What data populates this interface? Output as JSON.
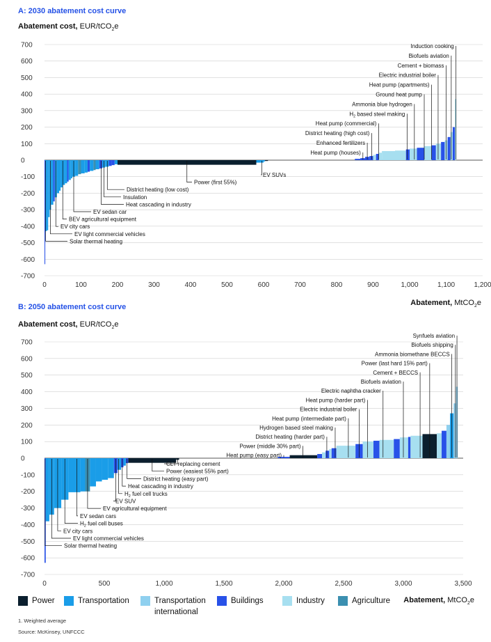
{
  "colors": {
    "Power": "#0b1f2e",
    "Transportation": "#1a9de8",
    "Transportation international": "#8fd0ef",
    "Buildings": "#2851e8",
    "Industry": "#a7dff0",
    "Agriculture": "#3b8fb0",
    "title": "#2451e6"
  },
  "sub": "2",
  "yaxis_title": {
    "bold": "Abatement cost,",
    "unit_pre": " EUR/tCO",
    "unit_post": "e"
  },
  "xaxis_title": {
    "bold": "Abatement,",
    "unit_pre": " MtCO",
    "unit_post": "e"
  },
  "legend": [
    {
      "label": "Power",
      "key": "Power"
    },
    {
      "label": "Transportation",
      "key": "Transportation"
    },
    {
      "label": "Transportation international",
      "key": "Transportation international"
    },
    {
      "label": "Buildings",
      "key": "Buildings"
    },
    {
      "label": "Industry",
      "key": "Industry"
    },
    {
      "label": "Agriculture",
      "key": "Agriculture"
    }
  ],
  "footnote": "1. Weighted average",
  "source": "Source: McKinsey, UNFCCC",
  "chart_data": [
    {
      "type": "bar",
      "title": "A: 2030 abatement cost curve",
      "ylabel": "Abatement cost, EUR/tCO2e",
      "xlabel": "Abatement, MtCO2e",
      "xlim": [
        0,
        1200
      ],
      "ylim": [
        -700,
        700
      ],
      "xticks": [
        0,
        100,
        200,
        300,
        400,
        500,
        600,
        700,
        800,
        900,
        1000,
        1100,
        1200
      ],
      "xtick_labels": [
        "0",
        "100",
        "200",
        "300",
        "400",
        "500",
        "600",
        "700",
        "800",
        "900",
        "1,000",
        "1,100",
        "1,200"
      ],
      "yticks": [
        -700,
        -600,
        -500,
        -400,
        -300,
        -200,
        -100,
        0,
        100,
        200,
        300,
        400,
        500,
        600,
        700
      ],
      "ytick_labels": [
        "-700",
        "-600",
        "-500",
        "-400",
        "-300",
        "-200",
        "-100",
        "0",
        "100",
        "200",
        "300",
        "400",
        "500",
        "600",
        "700"
      ],
      "grid": "horizontal",
      "bars": [
        {
          "x0": 0,
          "x1": 2,
          "y": -630,
          "sector": "Buildings"
        },
        {
          "x0": 2,
          "x1": 6,
          "y": -430,
          "sector": "Transportation"
        },
        {
          "x0": 6,
          "x1": 10,
          "y": -425,
          "sector": "Transportation"
        },
        {
          "x0": 10,
          "x1": 14,
          "y": -345,
          "sector": "Transportation"
        },
        {
          "x0": 14,
          "x1": 18,
          "y": -300,
          "sector": "Transportation"
        },
        {
          "x0": 18,
          "x1": 24,
          "y": -270,
          "sector": "Transportation"
        },
        {
          "x0": 24,
          "x1": 28,
          "y": -250,
          "sector": "Buildings"
        },
        {
          "x0": 28,
          "x1": 34,
          "y": -225,
          "sector": "Transportation"
        },
        {
          "x0": 34,
          "x1": 40,
          "y": -200,
          "sector": "Transportation"
        },
        {
          "x0": 40,
          "x1": 44,
          "y": -185,
          "sector": "Transportation"
        },
        {
          "x0": 44,
          "x1": 50,
          "y": -165,
          "sector": "Transportation"
        },
        {
          "x0": 50,
          "x1": 56,
          "y": -150,
          "sector": "Transportation"
        },
        {
          "x0": 56,
          "x1": 62,
          "y": -140,
          "sector": "Transportation"
        },
        {
          "x0": 62,
          "x1": 66,
          "y": -130,
          "sector": "Buildings"
        },
        {
          "x0": 66,
          "x1": 72,
          "y": -120,
          "sector": "Transportation"
        },
        {
          "x0": 72,
          "x1": 76,
          "y": -110,
          "sector": "Transportation"
        },
        {
          "x0": 76,
          "x1": 84,
          "y": -100,
          "sector": "Transportation"
        },
        {
          "x0": 84,
          "x1": 92,
          "y": -95,
          "sector": "Transportation"
        },
        {
          "x0": 92,
          "x1": 100,
          "y": -85,
          "sector": "Agriculture"
        },
        {
          "x0": 100,
          "x1": 110,
          "y": -80,
          "sector": "Transportation"
        },
        {
          "x0": 110,
          "x1": 118,
          "y": -75,
          "sector": "Transportation"
        },
        {
          "x0": 118,
          "x1": 124,
          "y": -70,
          "sector": "Buildings"
        },
        {
          "x0": 124,
          "x1": 134,
          "y": -65,
          "sector": "Transportation"
        },
        {
          "x0": 134,
          "x1": 140,
          "y": -60,
          "sector": "Agriculture"
        },
        {
          "x0": 140,
          "x1": 150,
          "y": -55,
          "sector": "Transportation"
        },
        {
          "x0": 150,
          "x1": 158,
          "y": -50,
          "sector": "Buildings"
        },
        {
          "x0": 158,
          "x1": 166,
          "y": -45,
          "sector": "Transportation"
        },
        {
          "x0": 166,
          "x1": 176,
          "y": -40,
          "sector": "Transportation"
        },
        {
          "x0": 176,
          "x1": 184,
          "y": -35,
          "sector": "Buildings"
        },
        {
          "x0": 184,
          "x1": 192,
          "y": -30,
          "sector": "Buildings"
        },
        {
          "x0": 192,
          "x1": 200,
          "y": -25,
          "sector": "Transportation"
        },
        {
          "x0": 200,
          "x1": 580,
          "y": -28,
          "sector": "Power"
        },
        {
          "x0": 580,
          "x1": 600,
          "y": -15,
          "sector": "Transportation"
        },
        {
          "x0": 600,
          "x1": 604,
          "y": -8,
          "sector": "Transportation"
        },
        {
          "x0": 604,
          "x1": 612,
          "y": -5,
          "sector": "Power"
        },
        {
          "x0": 850,
          "x1": 865,
          "y": 8,
          "sector": "Buildings"
        },
        {
          "x0": 865,
          "x1": 878,
          "y": 12,
          "sector": "Buildings"
        },
        {
          "x0": 878,
          "x1": 890,
          "y": 20,
          "sector": "Buildings"
        },
        {
          "x0": 890,
          "x1": 900,
          "y": 25,
          "sector": "Buildings"
        },
        {
          "x0": 900,
          "x1": 908,
          "y": 32,
          "sector": "Industry"
        },
        {
          "x0": 908,
          "x1": 916,
          "y": 38,
          "sector": "Buildings"
        },
        {
          "x0": 916,
          "x1": 924,
          "y": 45,
          "sector": "Industry"
        },
        {
          "x0": 924,
          "x1": 960,
          "y": 55,
          "sector": "Industry"
        },
        {
          "x0": 960,
          "x1": 990,
          "y": 58,
          "sector": "Industry"
        },
        {
          "x0": 990,
          "x1": 1000,
          "y": 65,
          "sector": "Buildings"
        },
        {
          "x0": 1000,
          "x1": 1020,
          "y": 70,
          "sector": "Industry"
        },
        {
          "x0": 1020,
          "x1": 1040,
          "y": 75,
          "sector": "Buildings"
        },
        {
          "x0": 1040,
          "x1": 1060,
          "y": 85,
          "sector": "Industry"
        },
        {
          "x0": 1060,
          "x1": 1072,
          "y": 90,
          "sector": "Buildings"
        },
        {
          "x0": 1072,
          "x1": 1086,
          "y": 100,
          "sector": "Industry"
        },
        {
          "x0": 1086,
          "x1": 1096,
          "y": 110,
          "sector": "Buildings"
        },
        {
          "x0": 1096,
          "x1": 1104,
          "y": 120,
          "sector": "Industry"
        },
        {
          "x0": 1104,
          "x1": 1112,
          "y": 140,
          "sector": "Buildings"
        },
        {
          "x0": 1112,
          "x1": 1118,
          "y": 170,
          "sector": "Industry"
        },
        {
          "x0": 1118,
          "x1": 1124,
          "y": 200,
          "sector": "Buildings"
        },
        {
          "x0": 1124,
          "x1": 1128,
          "y": 370,
          "sector": "Industry"
        }
      ],
      "annotations_above": [
        {
          "text": "Induction cooking",
          "x": 1127
        },
        {
          "text": "Biofuels aviation",
          "x": 1114
        },
        {
          "text": "Cement + biomass",
          "x": 1100
        },
        {
          "text": "Electric industrial boiler",
          "x": 1078
        },
        {
          "text": "Heat pump (apartments)",
          "x": 1060
        },
        {
          "text": "Ground heat pump",
          "x": 1040
        },
        {
          "text": "Ammonia blue hydrogen",
          "x": 1013
        },
        {
          "text": "H2 based steel making",
          "x": 993
        },
        {
          "text": "Heat pump (commercial)",
          "x": 915
        },
        {
          "text": "District heating (high cost)",
          "x": 896
        },
        {
          "text": "Enhanced fertilizers",
          "x": 884
        },
        {
          "text": "Heat pump (houses)",
          "x": 872
        }
      ],
      "annotations_below": [
        {
          "text": "EV SUVs",
          "x": 595
        },
        {
          "text": "Power (first 55%)",
          "x": 390
        },
        {
          "text": "District heating (low cost)",
          "x": 172
        },
        {
          "text": "Insulation",
          "x": 163
        },
        {
          "text": "Heat cascading in industry",
          "x": 155
        },
        {
          "text": "EV sedan car",
          "x": 80
        },
        {
          "text": "BEV agricultural equipment",
          "x": 50
        },
        {
          "text": "EV city cars",
          "x": 31
        },
        {
          "text": "EV light commercial vehicles",
          "x": 16
        },
        {
          "text": "Solar thermal heating",
          "x": 3
        }
      ]
    },
    {
      "type": "bar",
      "title": "B: 2050 abatement cost curve",
      "ylabel": "Abatement cost, EUR/tCO2e",
      "xlabel": "Abatement, MtCO2e",
      "xlim": [
        0,
        3500
      ],
      "ylim": [
        -700,
        700
      ],
      "xticks": [
        0,
        500,
        1000,
        1500,
        2000,
        2500,
        3000,
        3500
      ],
      "xtick_labels": [
        "0",
        "500",
        "1,000",
        "1,500",
        "2,000",
        "2,500",
        "3,000",
        "3,500"
      ],
      "yticks": [
        -700,
        -600,
        -500,
        -400,
        -300,
        -200,
        -100,
        0,
        100,
        200,
        300,
        400,
        500,
        600,
        700
      ],
      "ytick_labels": [
        "-700",
        "-600",
        "-500",
        "-400",
        "-300",
        "-200",
        "-100",
        "0",
        "100",
        "200",
        "300",
        "400",
        "500",
        "600",
        "700"
      ],
      "grid": "horizontal",
      "bars": [
        {
          "x0": 0,
          "x1": 10,
          "y": -630,
          "sector": "Buildings"
        },
        {
          "x0": 10,
          "x1": 40,
          "y": -380,
          "sector": "Transportation"
        },
        {
          "x0": 40,
          "x1": 80,
          "y": -340,
          "sector": "Transportation"
        },
        {
          "x0": 80,
          "x1": 140,
          "y": -300,
          "sector": "Transportation"
        },
        {
          "x0": 140,
          "x1": 200,
          "y": -250,
          "sector": "Transportation"
        },
        {
          "x0": 200,
          "x1": 300,
          "y": -205,
          "sector": "Transportation"
        },
        {
          "x0": 300,
          "x1": 340,
          "y": -200,
          "sector": "Transportation"
        },
        {
          "x0": 340,
          "x1": 380,
          "y": -200,
          "sector": "Agriculture"
        },
        {
          "x0": 380,
          "x1": 430,
          "y": -170,
          "sector": "Transportation"
        },
        {
          "x0": 430,
          "x1": 480,
          "y": -140,
          "sector": "Transportation"
        },
        {
          "x0": 480,
          "x1": 530,
          "y": -130,
          "sector": "Transportation"
        },
        {
          "x0": 530,
          "x1": 580,
          "y": -120,
          "sector": "Transportation"
        },
        {
          "x0": 580,
          "x1": 610,
          "y": -90,
          "sector": "Buildings"
        },
        {
          "x0": 610,
          "x1": 640,
          "y": -70,
          "sector": "Transportation"
        },
        {
          "x0": 640,
          "x1": 660,
          "y": -55,
          "sector": "Buildings"
        },
        {
          "x0": 660,
          "x1": 680,
          "y": -45,
          "sector": "Transportation"
        },
        {
          "x0": 680,
          "x1": 700,
          "y": -30,
          "sector": "Buildings"
        },
        {
          "x0": 700,
          "x1": 1100,
          "y": -28,
          "sector": "Power"
        },
        {
          "x0": 1100,
          "x1": 1125,
          "y": -10,
          "sector": "Power"
        },
        {
          "x0": 1950,
          "x1": 2050,
          "y": 8,
          "sector": "Buildings"
        },
        {
          "x0": 2050,
          "x1": 2280,
          "y": 18,
          "sector": "Power"
        },
        {
          "x0": 2280,
          "x1": 2320,
          "y": 25,
          "sector": "Buildings"
        },
        {
          "x0": 2320,
          "x1": 2350,
          "y": 35,
          "sector": "Industry"
        },
        {
          "x0": 2350,
          "x1": 2380,
          "y": 45,
          "sector": "Buildings"
        },
        {
          "x0": 2380,
          "x1": 2400,
          "y": 55,
          "sector": "Industry"
        },
        {
          "x0": 2400,
          "x1": 2440,
          "y": 60,
          "sector": "Buildings"
        },
        {
          "x0": 2440,
          "x1": 2600,
          "y": 75,
          "sector": "Industry"
        },
        {
          "x0": 2600,
          "x1": 2660,
          "y": 85,
          "sector": "Buildings"
        },
        {
          "x0": 2660,
          "x1": 2750,
          "y": 100,
          "sector": "Industry"
        },
        {
          "x0": 2750,
          "x1": 2800,
          "y": 105,
          "sector": "Buildings"
        },
        {
          "x0": 2800,
          "x1": 2920,
          "y": 110,
          "sector": "Industry"
        },
        {
          "x0": 2920,
          "x1": 2970,
          "y": 115,
          "sector": "Buildings"
        },
        {
          "x0": 2970,
          "x1": 3040,
          "y": 125,
          "sector": "Industry"
        },
        {
          "x0": 3040,
          "x1": 3060,
          "y": 128,
          "sector": "Buildings"
        },
        {
          "x0": 3060,
          "x1": 3160,
          "y": 135,
          "sector": "Industry"
        },
        {
          "x0": 3160,
          "x1": 3280,
          "y": 145,
          "sector": "Power"
        },
        {
          "x0": 3280,
          "x1": 3320,
          "y": 150,
          "sector": "Industry"
        },
        {
          "x0": 3320,
          "x1": 3360,
          "y": 165,
          "sector": "Buildings"
        },
        {
          "x0": 3360,
          "x1": 3390,
          "y": 200,
          "sector": "Transportation international"
        },
        {
          "x0": 3390,
          "x1": 3420,
          "y": 270,
          "sector": "Transportation"
        },
        {
          "x0": 3420,
          "x1": 3440,
          "y": 330,
          "sector": "Transportation international"
        },
        {
          "x0": 3440,
          "x1": 3455,
          "y": 430,
          "sector": "Transportation international"
        }
      ],
      "annotations_above": [
        {
          "text": "Synfuels aviation",
          "x": 3448
        },
        {
          "text": "Biofuels shipping",
          "x": 3435
        },
        {
          "text": "Ammonia biomethane BECCS",
          "x": 3405
        },
        {
          "text": "Power (last hard 15% part)",
          "x": 3220
        },
        {
          "text": "Cement + BECCS",
          "x": 3140
        },
        {
          "text": "Biofuels aviation",
          "x": 3000
        },
        {
          "text": "Electric naphtha cracker",
          "x": 2830
        },
        {
          "text": "Heat pump (harder part)",
          "x": 2700
        },
        {
          "text": "Electric industrial boiler",
          "x": 2630
        },
        {
          "text": "Heat pump (intermediate part)",
          "x": 2540
        },
        {
          "text": "Hydrogen based steel making",
          "x": 2430
        },
        {
          "text": "District heating (harder part)",
          "x": 2360
        },
        {
          "text": "Power (middle 30% part)",
          "x": 2160
        },
        {
          "text": "Heat pump (easy part)",
          "x": 2000
        }
      ],
      "annotations_below": [
        {
          "text": "CLT replacing cement",
          "x": 1112
        },
        {
          "text": "Power (easiest 55% part)",
          "x": 900
        },
        {
          "text": "District heating (easy part)",
          "x": 690
        },
        {
          "text": "Heat cascading in industry",
          "x": 650
        },
        {
          "text": "H2 fuel cell trucks",
          "x": 620
        },
        {
          "text": "EV SUV",
          "x": 595
        },
        {
          "text": "EV agricultural equipment",
          "x": 360
        },
        {
          "text": "EV sedan cars",
          "x": 270
        },
        {
          "text": "H2 fuel cell buses",
          "x": 170
        },
        {
          "text": "EV city cars",
          "x": 110
        },
        {
          "text": "EV light commercial vehicles",
          "x": 60
        },
        {
          "text": "Solar thermal heating",
          "x": 5
        }
      ]
    }
  ]
}
